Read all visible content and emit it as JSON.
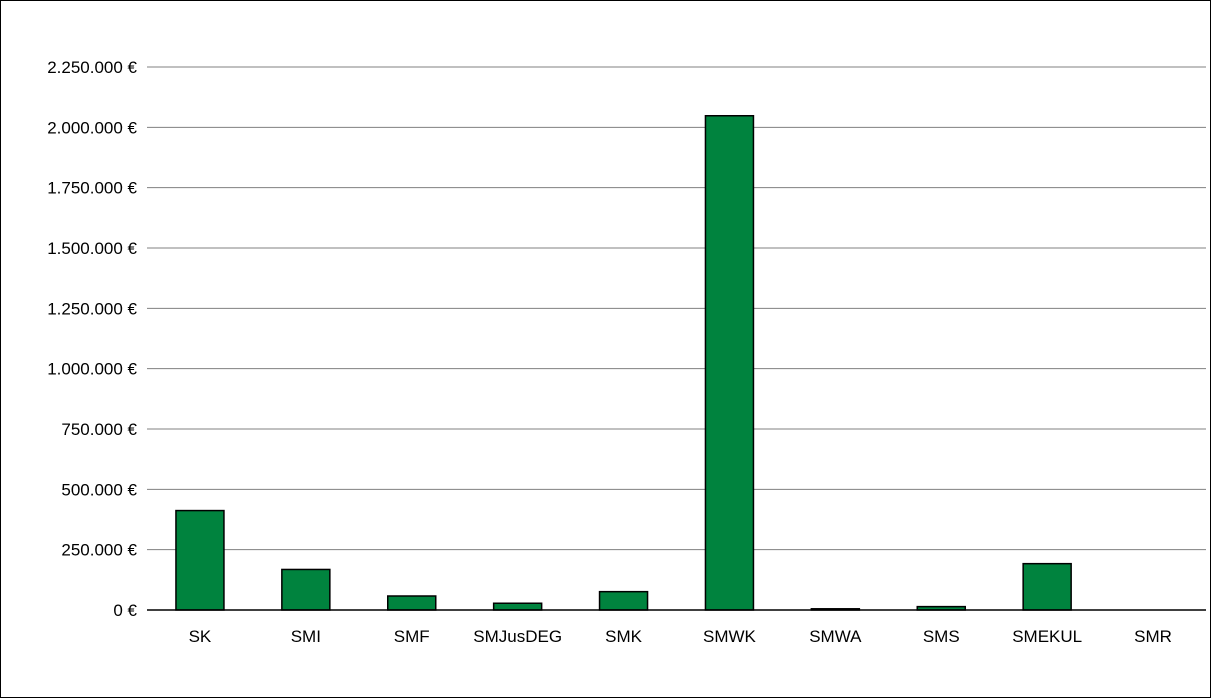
{
  "chart_data": {
    "type": "bar",
    "categories": [
      "SK",
      "SMI",
      "SMF",
      "SMJusDEG",
      "SMK",
      "SMWK",
      "SMWA",
      "SMS",
      "SMEKUL",
      "SMR"
    ],
    "values": [
      412000,
      168000,
      58000,
      28000,
      76000,
      2048000,
      5000,
      14000,
      192000,
      0
    ],
    "ylim": [
      0,
      2250000
    ],
    "y_ticks": [
      0,
      250000,
      500000,
      750000,
      1000000,
      1250000,
      1500000,
      1750000,
      2000000,
      2250000
    ],
    "y_tick_labels": [
      "0 €",
      "250.000 €",
      "500.000 €",
      "750.000 €",
      "1.000.000 €",
      "1.250.000 €",
      "1.500.000 €",
      "1.750.000 €",
      "2.000.000 €",
      "2.250.000 €"
    ],
    "title": "",
    "xlabel": "",
    "ylabel": "",
    "grid": true,
    "legend": "none",
    "colors": {
      "bar_fill": "#00833e",
      "bar_stroke": "#000000",
      "grid": "#808080",
      "axis": "#000000"
    }
  }
}
